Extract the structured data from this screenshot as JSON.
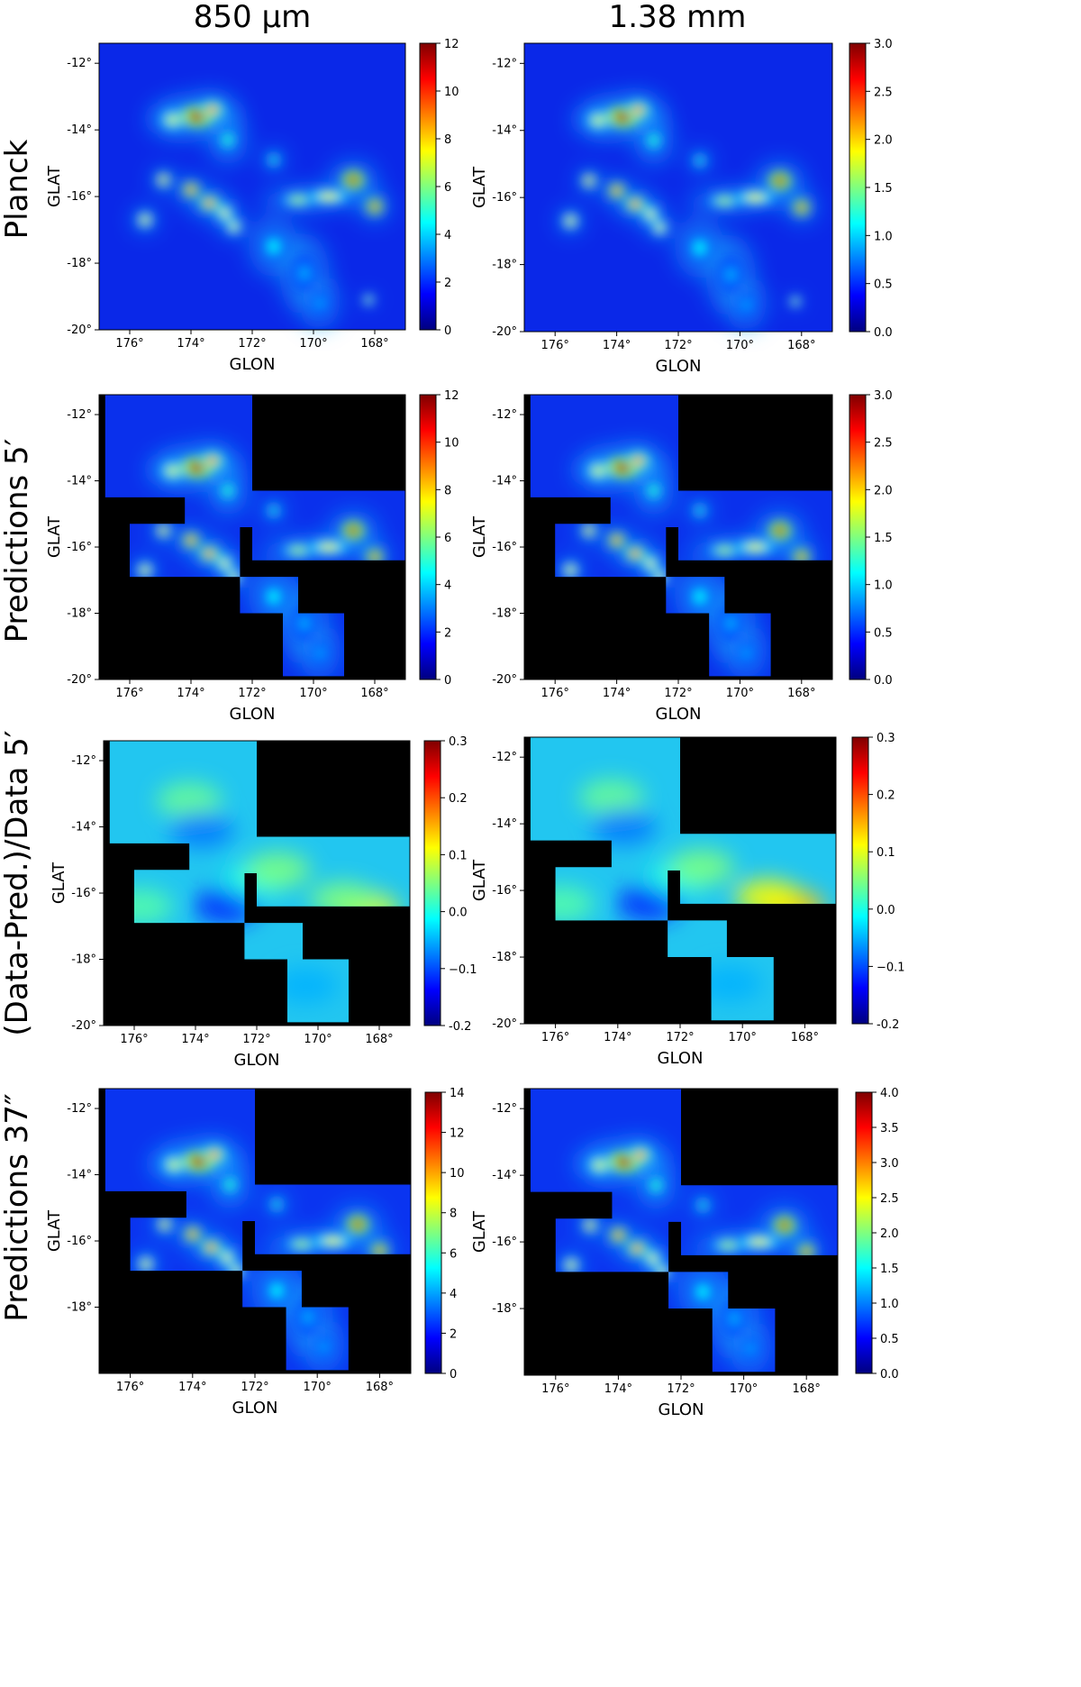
{
  "figure": {
    "columns": [
      "850 μm",
      "1.38 mm"
    ],
    "rows": [
      "Planck",
      "Predictions 5′",
      "(Data-Pred.)/Data 5′",
      "Predictions 37″"
    ]
  },
  "chart_data": [
    {
      "type": "heatmap",
      "row": 0,
      "col": 0,
      "xlabel": "GLON",
      "ylabel": "GLAT",
      "xlim": [
        177,
        167
      ],
      "ylim": [
        -20,
        -11.4
      ],
      "x_ticks": [
        176,
        174,
        172,
        170,
        168
      ],
      "x_tick_labels": [
        "176°",
        "174°",
        "172°",
        "170°",
        "168°"
      ],
      "y_ticks": [
        -12,
        -14,
        -16,
        -18,
        -20
      ],
      "y_tick_labels": [
        "-12°",
        "-14°",
        "-16°",
        "-18°",
        "-20°"
      ],
      "colormap": "jet",
      "colorbar_range": [
        0,
        12
      ],
      "colorbar_ticks": [
        0,
        2,
        4,
        6,
        8,
        10,
        12
      ],
      "colorbar_tick_labels": [
        "0",
        "2",
        "4",
        "6",
        "8",
        "10",
        "12"
      ],
      "coverage": "full"
    },
    {
      "type": "heatmap",
      "row": 0,
      "col": 1,
      "xlabel": "GLON",
      "ylabel": "GLAT",
      "xlim": [
        177,
        167
      ],
      "ylim": [
        -20,
        -11.4
      ],
      "x_ticks": [
        176,
        174,
        172,
        170,
        168
      ],
      "x_tick_labels": [
        "176°",
        "174°",
        "172°",
        "170°",
        "168°"
      ],
      "y_ticks": [
        -12,
        -14,
        -16,
        -18,
        -20
      ],
      "y_tick_labels": [
        "-12°",
        "-14°",
        "-16°",
        "-18°",
        "-20°"
      ],
      "colormap": "jet",
      "colorbar_range": [
        0,
        3
      ],
      "colorbar_ticks": [
        0,
        0.5,
        1,
        1.5,
        2,
        2.5,
        3
      ],
      "colorbar_tick_labels": [
        "0.0",
        "0.5",
        "1.0",
        "1.5",
        "2.0",
        "2.5",
        "3.0"
      ],
      "coverage": "full"
    },
    {
      "type": "heatmap",
      "row": 1,
      "col": 0,
      "xlabel": "GLON",
      "ylabel": "GLAT",
      "xlim": [
        177,
        167
      ],
      "ylim": [
        -20,
        -11.4
      ],
      "x_ticks": [
        176,
        174,
        172,
        170,
        168
      ],
      "x_tick_labels": [
        "176°",
        "174°",
        "172°",
        "170°",
        "168°"
      ],
      "y_ticks": [
        -12,
        -14,
        -16,
        -18,
        -20
      ],
      "y_tick_labels": [
        "-12°",
        "-14°",
        "-16°",
        "-18°",
        "-20°"
      ],
      "colormap": "jet",
      "colorbar_range": [
        0,
        12
      ],
      "colorbar_ticks": [
        0,
        2,
        4,
        6,
        8,
        10,
        12
      ],
      "colorbar_tick_labels": [
        "0",
        "2",
        "4",
        "6",
        "8",
        "10",
        "12"
      ],
      "coverage": "mosaic"
    },
    {
      "type": "heatmap",
      "row": 1,
      "col": 1,
      "xlabel": "GLON",
      "ylabel": "GLAT",
      "xlim": [
        177,
        167
      ],
      "ylim": [
        -20,
        -11.4
      ],
      "x_ticks": [
        176,
        174,
        172,
        170,
        168
      ],
      "x_tick_labels": [
        "176°",
        "174°",
        "172°",
        "170°",
        "168°"
      ],
      "y_ticks": [
        -12,
        -14,
        -16,
        -18,
        -20
      ],
      "y_tick_labels": [
        "-12°",
        "-14°",
        "-16°",
        "-18°",
        "-20°"
      ],
      "colormap": "jet",
      "colorbar_range": [
        0,
        3
      ],
      "colorbar_ticks": [
        0,
        0.5,
        1,
        1.5,
        2,
        2.5,
        3
      ],
      "colorbar_tick_labels": [
        "0.0",
        "0.5",
        "1.0",
        "1.5",
        "2.0",
        "2.5",
        "3.0"
      ],
      "coverage": "mosaic"
    },
    {
      "type": "heatmap",
      "row": 2,
      "col": 0,
      "xlabel": "GLON",
      "ylabel": "GLAT",
      "xlim": [
        177,
        167
      ],
      "ylim": [
        -20,
        -11.4
      ],
      "x_ticks": [
        176,
        174,
        172,
        170,
        168
      ],
      "x_tick_labels": [
        "176°",
        "174°",
        "172°",
        "170°",
        "168°"
      ],
      "y_ticks": [
        -12,
        -14,
        -16,
        -18,
        -20
      ],
      "y_tick_labels": [
        "-12°",
        "-14°",
        "-16°",
        "-18°",
        "-20°"
      ],
      "colormap": "jet",
      "colorbar_range": [
        -0.2,
        0.3
      ],
      "colorbar_ticks": [
        -0.2,
        -0.1,
        0,
        0.1,
        0.2,
        0.3
      ],
      "colorbar_tick_labels": [
        "-0.2",
        "−0.1",
        "0.0",
        "0.1",
        "0.2",
        "0.3"
      ],
      "coverage": "mosaic"
    },
    {
      "type": "heatmap",
      "row": 2,
      "col": 1,
      "xlabel": "GLON",
      "ylabel": "GLAT",
      "xlim": [
        177,
        167
      ],
      "ylim": [
        -20,
        -11.4
      ],
      "x_ticks": [
        176,
        174,
        172,
        170,
        168
      ],
      "x_tick_labels": [
        "176°",
        "174°",
        "172°",
        "170°",
        "168°"
      ],
      "y_ticks": [
        -12,
        -14,
        -16,
        -18,
        -20
      ],
      "y_tick_labels": [
        "-12°",
        "-14°",
        "-16°",
        "-18°",
        "-20°"
      ],
      "colormap": "jet",
      "colorbar_range": [
        -0.2,
        0.3
      ],
      "colorbar_ticks": [
        -0.2,
        -0.1,
        0,
        0.1,
        0.2,
        0.3
      ],
      "colorbar_tick_labels": [
        "-0.2",
        "−0.1",
        "0.0",
        "0.1",
        "0.2",
        "0.3"
      ],
      "coverage": "mosaic"
    },
    {
      "type": "heatmap",
      "row": 3,
      "col": 0,
      "xlabel": "GLON",
      "ylabel": "GLAT",
      "xlim": [
        177,
        167
      ],
      "ylim": [
        -20,
        -11.4
      ],
      "x_ticks": [
        176,
        174,
        172,
        170,
        168
      ],
      "x_tick_labels": [
        "176°",
        "174°",
        "172°",
        "170°",
        "168°"
      ],
      "y_ticks": [
        -12,
        -14,
        -16,
        -18
      ],
      "y_tick_labels": [
        "-12°",
        "-14°",
        "-16°",
        "-18°"
      ],
      "colormap": "jet",
      "colorbar_range": [
        0,
        14
      ],
      "colorbar_ticks": [
        0,
        2,
        4,
        6,
        8,
        10,
        12,
        14
      ],
      "colorbar_tick_labels": [
        "0",
        "2",
        "4",
        "6",
        "8",
        "10",
        "12",
        "14"
      ],
      "coverage": "mosaic"
    },
    {
      "type": "heatmap",
      "row": 3,
      "col": 1,
      "xlabel": "GLON",
      "ylabel": "GLAT",
      "xlim": [
        177,
        167
      ],
      "ylim": [
        -20,
        -11.4
      ],
      "x_ticks": [
        176,
        174,
        172,
        170,
        168
      ],
      "x_tick_labels": [
        "176°",
        "174°",
        "172°",
        "170°",
        "168°"
      ],
      "y_ticks": [
        -12,
        -14,
        -16,
        -18
      ],
      "y_tick_labels": [
        "-12°",
        "-14°",
        "-16°",
        "-18°"
      ],
      "colormap": "jet",
      "colorbar_range": [
        0,
        4
      ],
      "colorbar_ticks": [
        0,
        0.5,
        1,
        1.5,
        2,
        2.5,
        3,
        3.5,
        4
      ],
      "colorbar_tick_labels": [
        "0.0",
        "0.5",
        "1.0",
        "1.5",
        "2.0",
        "2.5",
        "3.0",
        "3.5",
        "4.0"
      ],
      "coverage": "mosaic"
    }
  ],
  "coverage_mosaic": [
    {
      "lon": [
        176.8,
        172.0
      ],
      "lat": [
        -11.4,
        -14.5
      ]
    },
    {
      "lon": [
        174.2,
        167.0
      ],
      "lat": [
        -14.3,
        -15.4
      ]
    },
    {
      "lon": [
        172.0,
        167.0
      ],
      "lat": [
        -14.8,
        -16.4
      ]
    },
    {
      "lon": [
        176.0,
        172.4
      ],
      "lat": [
        -15.3,
        -16.9
      ]
    },
    {
      "lon": [
        172.4,
        170.5
      ],
      "lat": [
        -16.9,
        -18.0
      ]
    },
    {
      "lon": [
        171.0,
        169.0
      ],
      "lat": [
        -18.0,
        -19.9
      ]
    }
  ],
  "emission_features": [
    {
      "lon": 173.8,
      "lat": -13.6,
      "value": 11.5,
      "lon_spread": 0.45,
      "lat_spread": 0.22
    },
    {
      "lon": 173.3,
      "lat": -13.4,
      "value": 9.0,
      "lon_spread": 0.25,
      "lat_spread": 0.18
    },
    {
      "lon": 174.6,
      "lat": -13.7,
      "value": 7.0,
      "lon_spread": 0.25,
      "lat_spread": 0.18
    },
    {
      "lon": 172.8,
      "lat": -14.3,
      "value": 5.0,
      "lon_spread": 0.2,
      "lat_spread": 0.25
    },
    {
      "lon": 174.9,
      "lat": -15.5,
      "value": 9.0,
      "lon_spread": 0.12,
      "lat_spread": 0.12
    },
    {
      "lon": 174.0,
      "lat": -15.8,
      "value": 10.5,
      "lon_spread": 0.16,
      "lat_spread": 0.14
    },
    {
      "lon": 173.4,
      "lat": -16.2,
      "value": 9.5,
      "lon_spread": 0.22,
      "lat_spread": 0.15
    },
    {
      "lon": 172.9,
      "lat": -16.5,
      "value": 8.0,
      "lon_spread": 0.14,
      "lat_spread": 0.15
    },
    {
      "lon": 175.5,
      "lat": -16.7,
      "value": 8.5,
      "lon_spread": 0.13,
      "lat_spread": 0.13
    },
    {
      "lon": 168.7,
      "lat": -15.5,
      "value": 11.5,
      "lon_spread": 0.25,
      "lat_spread": 0.2
    },
    {
      "lon": 168.0,
      "lat": -16.3,
      "value": 11.0,
      "lon_spread": 0.16,
      "lat_spread": 0.16
    },
    {
      "lon": 169.5,
      "lat": -16.0,
      "value": 7.5,
      "lon_spread": 0.5,
      "lat_spread": 0.1
    },
    {
      "lon": 170.5,
      "lat": -16.1,
      "value": 6.5,
      "lon_spread": 0.4,
      "lat_spread": 0.1
    },
    {
      "lon": 172.6,
      "lat": -16.9,
      "value": 7.5,
      "lon_spread": 0.12,
      "lat_spread": 0.12
    },
    {
      "lon": 171.3,
      "lat": -14.9,
      "value": 5.0,
      "lon_spread": 0.12,
      "lat_spread": 0.12
    },
    {
      "lon": 171.3,
      "lat": -17.5,
      "value": 4.5,
      "lon_spread": 0.25,
      "lat_spread": 0.3
    },
    {
      "lon": 170.3,
      "lat": -18.3,
      "value": 3.5,
      "lon_spread": 0.25,
      "lat_spread": 0.4
    },
    {
      "lon": 169.8,
      "lat": -19.2,
      "value": 3.5,
      "lon_spread": 0.2,
      "lat_spread": 0.25
    },
    {
      "lon": 168.2,
      "lat": -19.1,
      "value": 7.0,
      "lon_spread": 0.06,
      "lat_spread": 0.06
    }
  ]
}
